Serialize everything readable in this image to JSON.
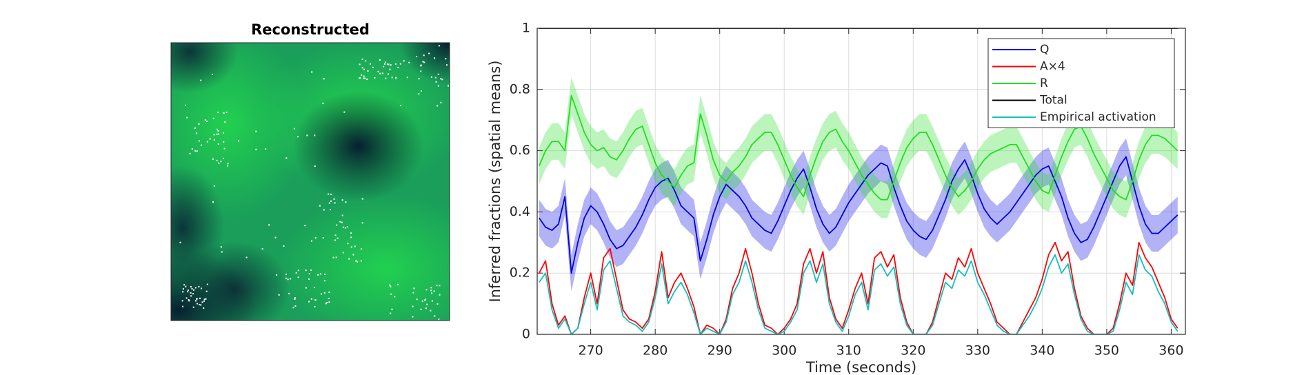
{
  "chart_data": [
    {
      "type": "image",
      "title": "Reconstructed"
    },
    {
      "type": "line",
      "xlabel": "Time (seconds)",
      "ylabel": "Inferred fractions (spatial means)",
      "xlim": [
        261.7,
        362.2
      ],
      "ylim": [
        0,
        1
      ],
      "xticks": [
        270,
        280,
        290,
        300,
        310,
        320,
        330,
        340,
        350,
        360
      ],
      "yticks": [
        0,
        0.2,
        0.4,
        0.6,
        0.8,
        1
      ],
      "grid": true,
      "legend": "upper right",
      "x": [
        262,
        263,
        264,
        265,
        266,
        267,
        268,
        269,
        270,
        271,
        272,
        273,
        274,
        275,
        276,
        277,
        278,
        279,
        280,
        281,
        282,
        283,
        284,
        285,
        286,
        287,
        288,
        289,
        290,
        291,
        292,
        293,
        294,
        295,
        296,
        297,
        298,
        299,
        300,
        301,
        302,
        303,
        304,
        305,
        306,
        307,
        308,
        309,
        310,
        311,
        312,
        313,
        314,
        315,
        316,
        317,
        318,
        319,
        320,
        321,
        322,
        323,
        324,
        325,
        326,
        327,
        328,
        329,
        330,
        331,
        332,
        333,
        334,
        335,
        336,
        337,
        338,
        339,
        340,
        341,
        342,
        343,
        344,
        345,
        346,
        347,
        348,
        349,
        350,
        351,
        352,
        353,
        354,
        355,
        356,
        357,
        358,
        359,
        360,
        361
      ],
      "series": [
        {
          "name": "Q",
          "color": "#0000e0",
          "band": 0.06,
          "values": [
            0.38,
            0.35,
            0.34,
            0.36,
            0.45,
            0.2,
            0.3,
            0.38,
            0.42,
            0.4,
            0.36,
            0.31,
            0.28,
            0.29,
            0.32,
            0.35,
            0.39,
            0.44,
            0.48,
            0.5,
            0.51,
            0.47,
            0.42,
            0.4,
            0.38,
            0.24,
            0.31,
            0.39,
            0.45,
            0.49,
            0.47,
            0.45,
            0.42,
            0.38,
            0.36,
            0.34,
            0.33,
            0.37,
            0.42,
            0.47,
            0.51,
            0.54,
            0.48,
            0.41,
            0.36,
            0.33,
            0.35,
            0.39,
            0.43,
            0.46,
            0.49,
            0.52,
            0.54,
            0.56,
            0.55,
            0.48,
            0.42,
            0.37,
            0.34,
            0.32,
            0.31,
            0.34,
            0.39,
            0.44,
            0.5,
            0.54,
            0.57,
            0.52,
            0.46,
            0.41,
            0.38,
            0.36,
            0.38,
            0.4,
            0.43,
            0.46,
            0.49,
            0.52,
            0.54,
            0.55,
            0.5,
            0.45,
            0.38,
            0.33,
            0.3,
            0.31,
            0.35,
            0.4,
            0.45,
            0.5,
            0.55,
            0.58,
            0.5,
            0.42,
            0.36,
            0.33,
            0.33,
            0.35,
            0.37,
            0.39
          ]
        },
        {
          "name": "A×4",
          "color": "#ff0000",
          "values": [
            0.2,
            0.24,
            0.1,
            0.03,
            0.06,
            0,
            0.02,
            0.12,
            0.2,
            0.1,
            0.25,
            0.28,
            0.18,
            0.08,
            0.05,
            0.04,
            0.02,
            0.05,
            0.14,
            0.27,
            0.12,
            0.17,
            0.2,
            0.15,
            0.09,
            0,
            0.03,
            0.02,
            0,
            0.05,
            0.15,
            0.2,
            0.28,
            0.2,
            0.1,
            0.03,
            0.02,
            0,
            0.02,
            0.05,
            0.1,
            0.23,
            0.28,
            0.2,
            0.27,
            0.12,
            0.05,
            0.02,
            0.08,
            0.15,
            0.2,
            0.1,
            0.25,
            0.27,
            0.22,
            0.26,
            0.12,
            0.04,
            0,
            0,
            0,
            0.04,
            0.12,
            0.2,
            0.18,
            0.25,
            0.22,
            0.28,
            0.2,
            0.15,
            0.1,
            0.04,
            0.02,
            0,
            0,
            0.04,
            0.08,
            0.12,
            0.18,
            0.26,
            0.3,
            0.24,
            0.27,
            0.15,
            0.06,
            0.02,
            0,
            0,
            0,
            0.02,
            0.1,
            0.2,
            0.16,
            0.3,
            0.25,
            0.22,
            0.17,
            0.12,
            0.05,
            0.02
          ]
        },
        {
          "name": "R",
          "color": "#22dd22",
          "band": 0.06,
          "values": [
            0.55,
            0.6,
            0.63,
            0.63,
            0.6,
            0.78,
            0.72,
            0.66,
            0.62,
            0.6,
            0.61,
            0.58,
            0.57,
            0.6,
            0.64,
            0.67,
            0.68,
            0.62,
            0.56,
            0.52,
            0.5,
            0.48,
            0.52,
            0.55,
            0.56,
            0.72,
            0.65,
            0.57,
            0.52,
            0.5,
            0.53,
            0.55,
            0.58,
            0.62,
            0.64,
            0.66,
            0.66,
            0.62,
            0.57,
            0.52,
            0.48,
            0.45,
            0.52,
            0.58,
            0.63,
            0.66,
            0.67,
            0.63,
            0.6,
            0.56,
            0.52,
            0.49,
            0.46,
            0.44,
            0.44,
            0.5,
            0.56,
            0.61,
            0.64,
            0.66,
            0.66,
            0.62,
            0.57,
            0.52,
            0.48,
            0.45,
            0.47,
            0.5,
            0.54,
            0.57,
            0.59,
            0.6,
            0.61,
            0.62,
            0.62,
            0.58,
            0.54,
            0.5,
            0.47,
            0.46,
            0.52,
            0.58,
            0.63,
            0.67,
            0.68,
            0.64,
            0.59,
            0.55,
            0.51,
            0.47,
            0.45,
            0.44,
            0.5,
            0.57,
            0.62,
            0.65,
            0.65,
            0.64,
            0.62,
            0.6
          ]
        },
        {
          "name": "Total",
          "color": "#000000",
          "values": [
            1,
            1,
            1,
            1,
            1,
            1,
            1,
            1,
            1,
            1,
            1,
            1,
            1,
            1,
            1,
            1,
            1,
            1,
            1,
            1,
            1,
            1,
            1,
            1,
            1,
            1,
            1,
            1,
            1,
            1,
            1,
            1,
            1,
            1,
            1,
            1,
            1,
            1,
            1,
            1,
            1,
            1,
            1,
            1,
            1,
            1,
            1,
            1,
            1,
            1,
            1,
            1,
            1,
            1,
            1,
            1,
            1,
            1,
            1,
            1,
            1,
            1,
            1,
            1,
            1,
            1,
            1,
            1,
            1,
            1,
            1,
            1,
            1,
            1,
            1,
            1,
            1,
            1,
            1,
            1,
            1,
            1,
            1,
            1,
            1,
            1,
            1,
            1,
            1,
            1,
            1,
            1,
            1,
            1,
            1,
            1,
            1,
            1,
            1,
            1
          ]
        },
        {
          "name": "Empirical activation",
          "color": "#10c0c0",
          "values": [
            0.17,
            0.2,
            0.08,
            0.02,
            0.05,
            0,
            0.02,
            0.1,
            0.17,
            0.08,
            0.21,
            0.24,
            0.15,
            0.06,
            0.04,
            0.03,
            0.01,
            0.04,
            0.12,
            0.23,
            0.1,
            0.14,
            0.17,
            0.13,
            0.07,
            0,
            0.02,
            0.01,
            0,
            0.04,
            0.13,
            0.17,
            0.24,
            0.17,
            0.08,
            0.02,
            0.01,
            0,
            0.01,
            0.04,
            0.08,
            0.2,
            0.24,
            0.17,
            0.23,
            0.1,
            0.04,
            0.01,
            0.06,
            0.13,
            0.17,
            0.08,
            0.21,
            0.23,
            0.19,
            0.22,
            0.1,
            0.03,
            0,
            0,
            0,
            0.03,
            0.1,
            0.17,
            0.15,
            0.21,
            0.19,
            0.24,
            0.17,
            0.13,
            0.08,
            0.03,
            0.01,
            0,
            0,
            0.03,
            0.06,
            0.1,
            0.15,
            0.22,
            0.26,
            0.2,
            0.23,
            0.13,
            0.05,
            0.01,
            0,
            0,
            0,
            0.01,
            0.08,
            0.17,
            0.13,
            0.26,
            0.21,
            0.19,
            0.14,
            0.1,
            0.04,
            0.01
          ]
        }
      ]
    }
  ]
}
